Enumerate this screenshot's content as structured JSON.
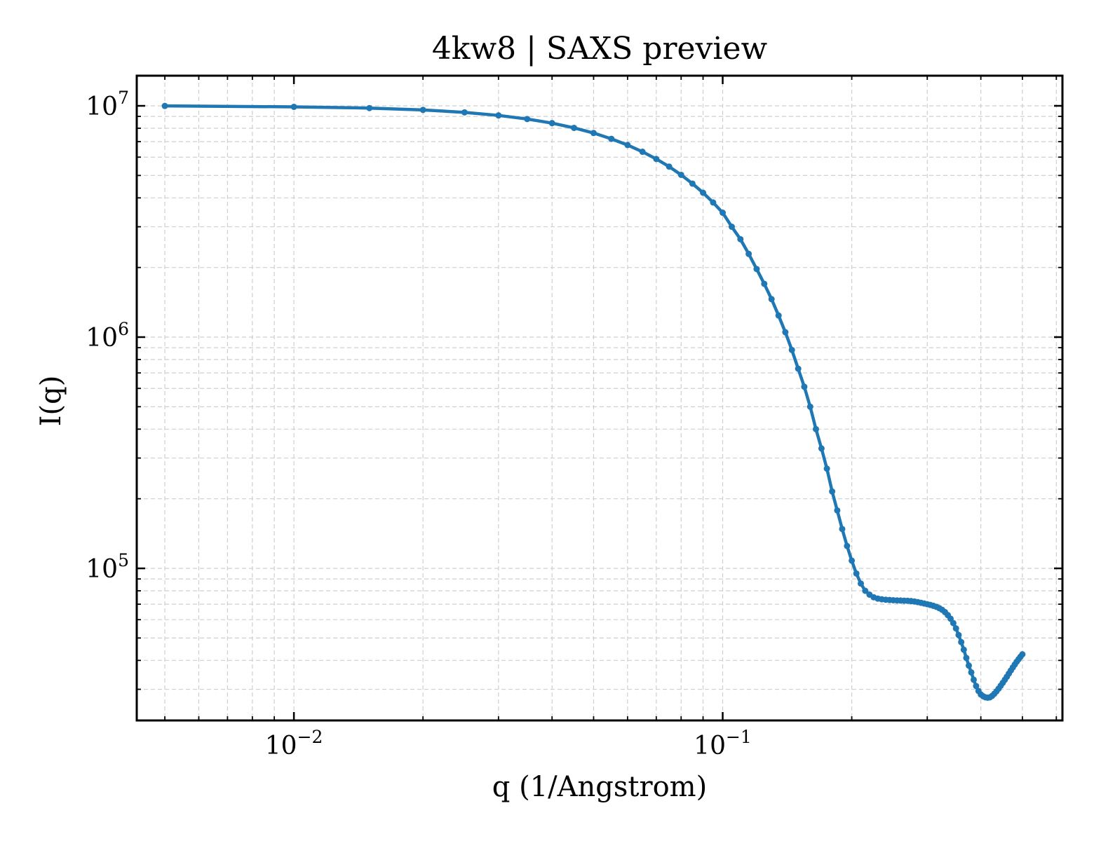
{
  "chart_data": {
    "type": "line",
    "title": "4kw8 | SAXS preview",
    "xlabel": "q (1/Angstrom)",
    "ylabel": "I(q)",
    "xscale": "log",
    "yscale": "log",
    "xlim": [
      0.0043,
      0.62
    ],
    "ylim": [
      22000,
      13500000
    ],
    "grid": true,
    "legend": "none",
    "x_tick_labels": [
      {
        "value": 0.01,
        "base": "10",
        "exp": "−2"
      },
      {
        "value": 0.1,
        "base": "10",
        "exp": "−1"
      }
    ],
    "y_tick_labels": [
      {
        "value": 100000,
        "base": "10",
        "exp": "5"
      },
      {
        "value": 1000000,
        "base": "10",
        "exp": "6"
      },
      {
        "value": 10000000,
        "base": "10",
        "exp": "7"
      }
    ],
    "series": [
      {
        "color": "#1f77b4",
        "x": [
          0.005,
          0.01,
          0.015,
          0.02,
          0.025,
          0.03,
          0.035,
          0.04,
          0.045,
          0.05,
          0.055,
          0.06,
          0.065,
          0.07,
          0.075,
          0.08,
          0.085,
          0.09,
          0.095,
          0.1,
          0.105,
          0.11,
          0.115,
          0.12,
          0.125,
          0.13,
          0.135,
          0.14,
          0.145,
          0.15,
          0.155,
          0.16,
          0.165,
          0.17,
          0.175,
          0.18,
          0.185,
          0.19,
          0.195,
          0.2,
          0.205,
          0.21,
          0.215,
          0.22,
          0.225,
          0.23,
          0.235,
          0.24,
          0.245,
          0.25,
          0.255,
          0.26,
          0.265,
          0.27,
          0.275,
          0.28,
          0.285,
          0.29,
          0.295,
          0.3,
          0.305,
          0.31,
          0.315,
          0.32,
          0.325,
          0.33,
          0.335,
          0.34,
          0.345,
          0.35,
          0.355,
          0.36,
          0.365,
          0.37,
          0.375,
          0.38,
          0.385,
          0.39,
          0.395,
          0.4,
          0.405,
          0.41,
          0.415,
          0.42,
          0.425,
          0.43,
          0.435,
          0.44,
          0.445,
          0.45,
          0.455,
          0.46,
          0.465,
          0.47,
          0.475,
          0.48,
          0.485,
          0.49,
          0.495,
          0.5
        ],
        "y": [
          9990000,
          9900000,
          9780000,
          9600000,
          9370000,
          9090000,
          8770000,
          8420000,
          8030000,
          7630000,
          7200000,
          6770000,
          6330000,
          5890000,
          5460000,
          5030000,
          4610000,
          4210000,
          3820000,
          3450000,
          3000000,
          2650000,
          2290000,
          1970000,
          1700000,
          1460000,
          1240000,
          1050000,
          880000,
          730000,
          610000,
          500000,
          400000,
          330000,
          270000,
          215000,
          178000,
          148000,
          125000,
          108000,
          95000,
          86000,
          80000,
          77000,
          75000,
          74000,
          73500,
          73200,
          73000,
          72800,
          72700,
          72600,
          72500,
          72400,
          72200,
          71900,
          71500,
          71000,
          70500,
          70000,
          69500,
          68900,
          68200,
          67300,
          66200,
          64700,
          62800,
          60600,
          58000,
          55000,
          51500,
          48000,
          44500,
          41000,
          38000,
          35500,
          33000,
          31000,
          29500,
          28500,
          28000,
          27700,
          27600,
          27700,
          28100,
          28700,
          29400,
          30200,
          31100,
          32000,
          33000,
          34000,
          35100,
          36200,
          37300,
          38400,
          39500,
          40500,
          41500,
          42500
        ]
      }
    ]
  }
}
